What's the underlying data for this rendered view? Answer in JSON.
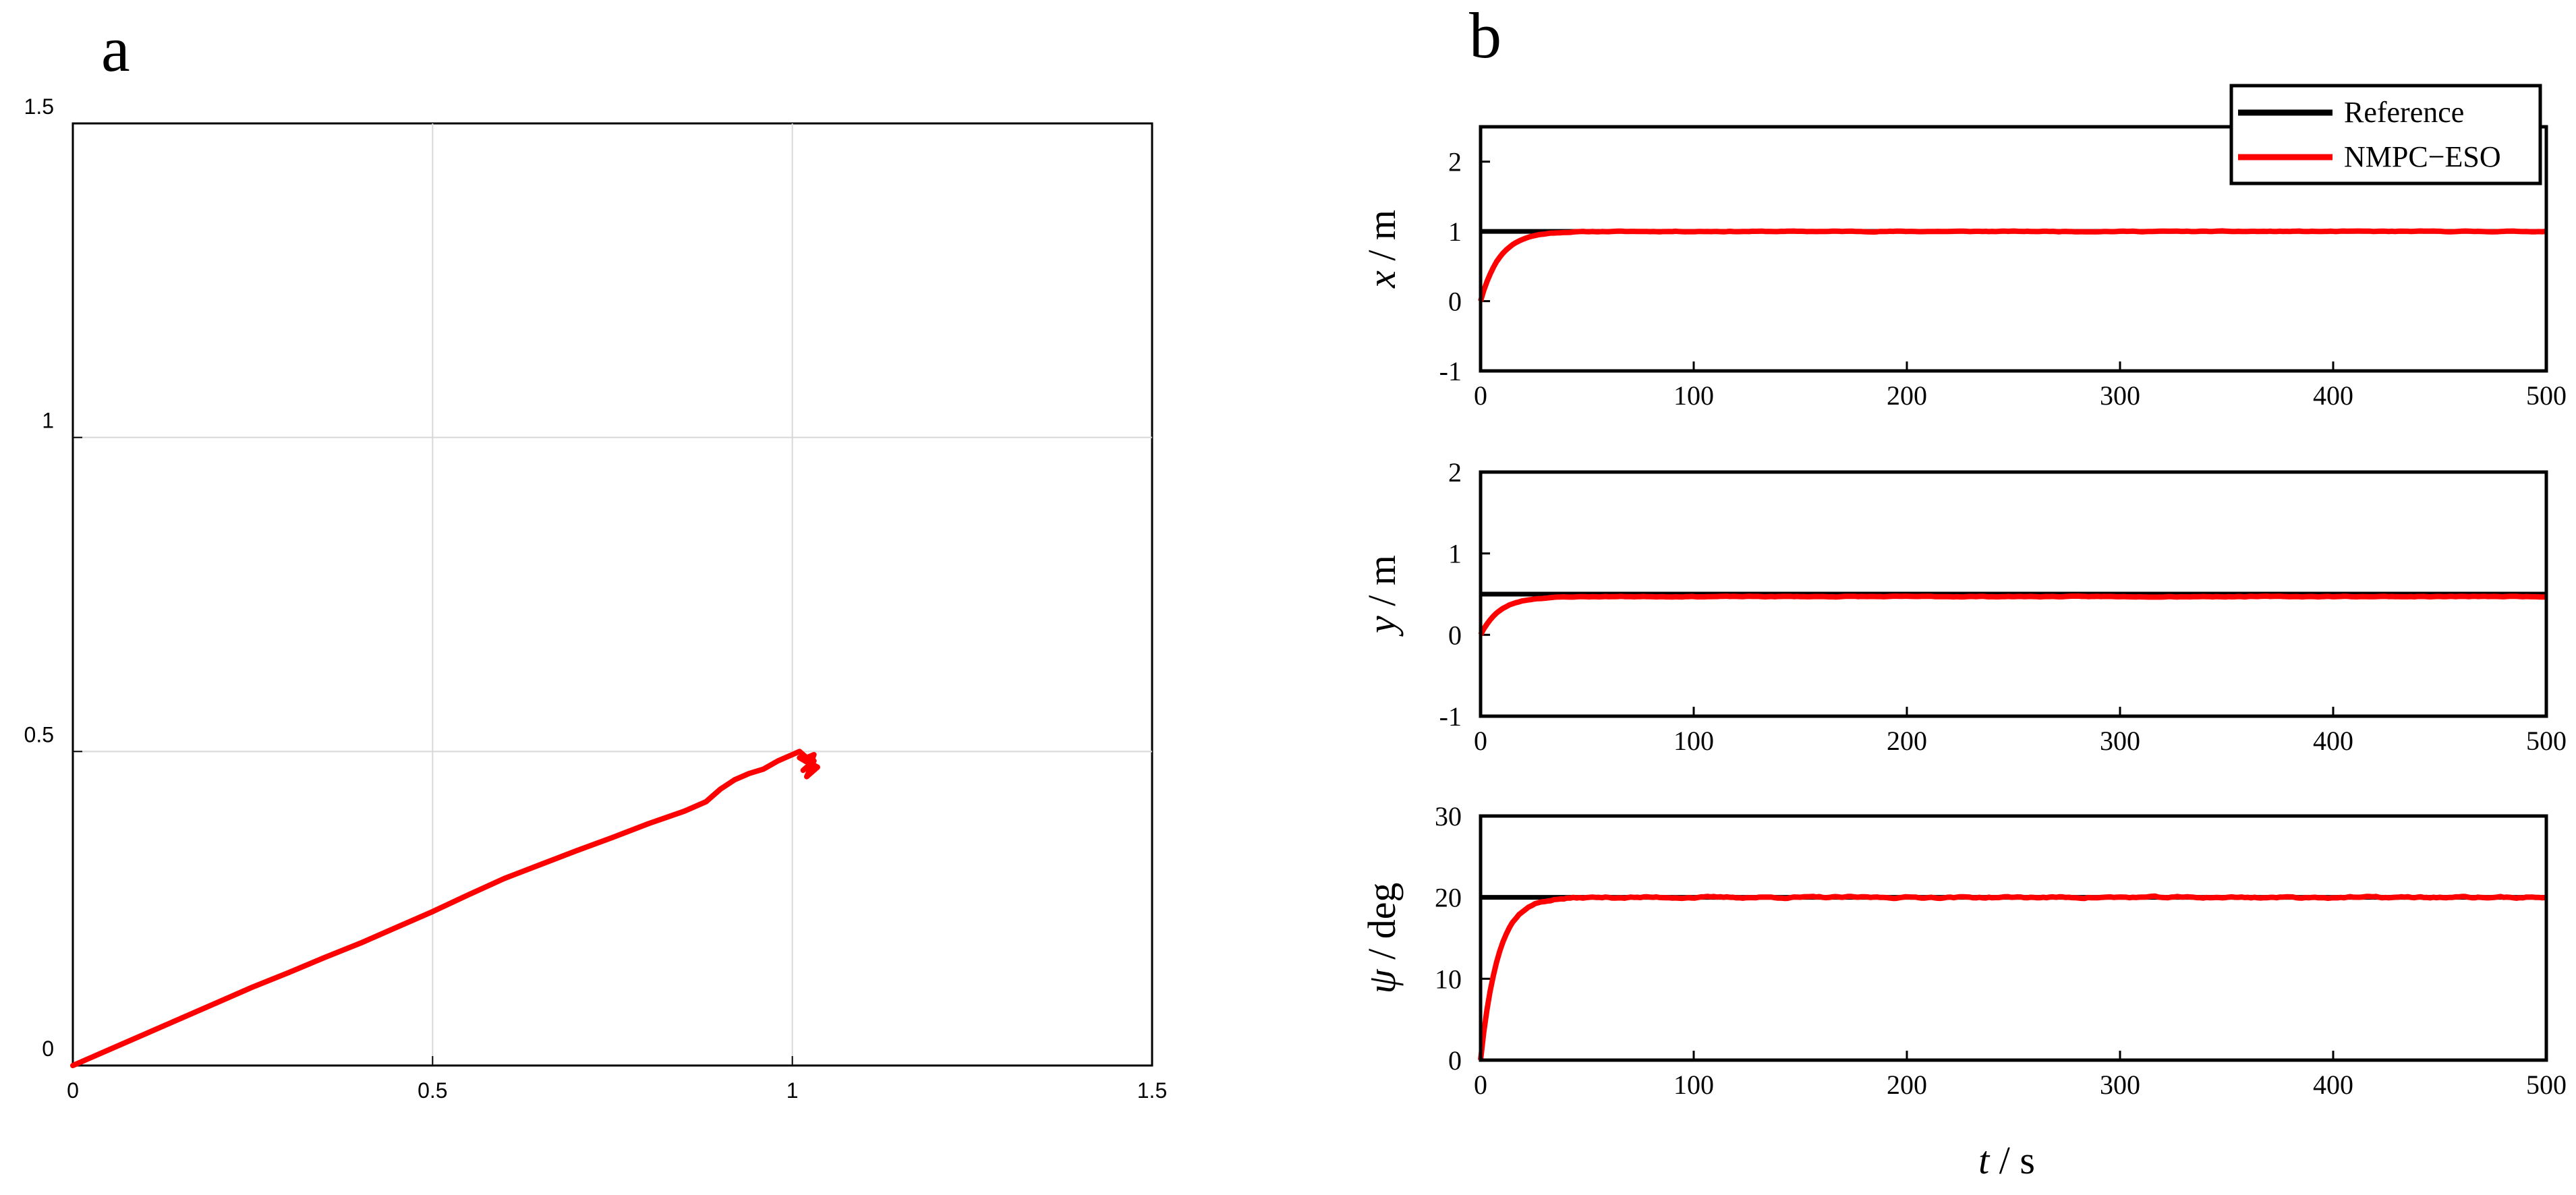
{
  "panel_labels": {
    "a": "a",
    "b": "b"
  },
  "colors": {
    "reference": "#000000",
    "nmpc_eso": "#ff0000",
    "grid": "#d8d8d8",
    "axis": "#000000"
  },
  "chart_data": [
    {
      "id": "a",
      "type": "line",
      "title": "",
      "xlabel": "",
      "ylabel": "",
      "xlim": [
        0,
        1.5
      ],
      "ylim": [
        0,
        1.5
      ],
      "xticks": [
        "0",
        "0.5",
        "1",
        "1.5"
      ],
      "yticks": [
        "0",
        "0.5",
        "1",
        "1.5"
      ],
      "xtick_values": [
        0,
        0.5,
        1,
        1.5
      ],
      "ytick_values": [
        0,
        0.5,
        1,
        1.5
      ],
      "grid": true,
      "series": [
        {
          "color": "#ff0000",
          "x": [
            0,
            0.05,
            0.1,
            0.15,
            0.2,
            0.25,
            0.3,
            0.35,
            0.4,
            0.45,
            0.5,
            0.55,
            0.6,
            0.65,
            0.7,
            0.75,
            0.8,
            0.85,
            0.88,
            0.9,
            0.92,
            0.94,
            0.96,
            0.98,
            0.99,
            1.0,
            1.01,
            1.02,
            1.03,
            1.025,
            1.015,
            1.03,
            1.02,
            1.035,
            1.01,
            1.025
          ],
          "y": [
            0,
            0.025,
            0.05,
            0.075,
            0.1,
            0.125,
            0.148,
            0.172,
            0.195,
            0.22,
            0.245,
            0.272,
            0.298,
            0.32,
            0.342,
            0.363,
            0.385,
            0.405,
            0.42,
            0.44,
            0.455,
            0.465,
            0.472,
            0.485,
            0.49,
            0.495,
            0.5,
            0.49,
            0.495,
            0.48,
            0.47,
            0.485,
            0.46,
            0.475,
            0.49,
            0.48
          ]
        }
      ]
    },
    {
      "id": "b-x",
      "type": "line",
      "ylabel_var": "x",
      "ylabel_unit": " / m",
      "xlim": [
        0,
        500
      ],
      "ylim": [
        -1,
        2.5
      ],
      "xticks": [
        "0",
        "100",
        "200",
        "300",
        "400",
        "500"
      ],
      "xtick_values": [
        0,
        100,
        200,
        300,
        400,
        500
      ],
      "yticks": [
        "-1",
        "0",
        "1",
        "2"
      ],
      "ytick_values": [
        -1,
        0,
        1,
        2
      ],
      "reference": 1.0,
      "series": [
        {
          "name": "NMPC−ESO",
          "color": "#ff0000",
          "start": 0,
          "final": 1.0,
          "tau": 9,
          "noise": 0.012
        }
      ]
    },
    {
      "id": "b-y",
      "type": "line",
      "ylabel_var": "y",
      "ylabel_unit": " / m",
      "xlim": [
        0,
        500
      ],
      "ylim": [
        -1,
        2
      ],
      "xticks": [
        "0",
        "100",
        "200",
        "300",
        "400",
        "500"
      ],
      "xtick_values": [
        0,
        100,
        200,
        300,
        400,
        500
      ],
      "yticks": [
        "-1",
        "0",
        "1",
        "2"
      ],
      "ytick_values": [
        -1,
        0,
        1,
        2
      ],
      "reference": 0.5,
      "series": [
        {
          "name": "NMPC−ESO",
          "color": "#ff0000",
          "start": 0,
          "final": 0.47,
          "tau": 9,
          "noise": 0.01
        }
      ]
    },
    {
      "id": "b-psi",
      "type": "line",
      "ylabel_var": "ψ",
      "ylabel_unit": " / deg",
      "xlabel_var": "t",
      "xlabel_unit": " / s",
      "xlim": [
        0,
        500
      ],
      "ylim": [
        0,
        30
      ],
      "xticks": [
        "0",
        "100",
        "200",
        "300",
        "400",
        "500"
      ],
      "xtick_values": [
        0,
        100,
        200,
        300,
        400,
        500
      ],
      "yticks": [
        "0",
        "10",
        "20",
        "30"
      ],
      "ytick_values": [
        0,
        10,
        20,
        30
      ],
      "reference": 20,
      "series": [
        {
          "name": "NMPC−ESO",
          "color": "#ff0000",
          "start": 0,
          "final": 20,
          "tau": 8,
          "noise": 0.25
        }
      ]
    }
  ],
  "legend": {
    "placement": "top-right",
    "items": [
      {
        "label": "Reference",
        "color": "#000000"
      },
      {
        "label": "NMPC−ESO",
        "color": "#ff0000"
      }
    ]
  }
}
